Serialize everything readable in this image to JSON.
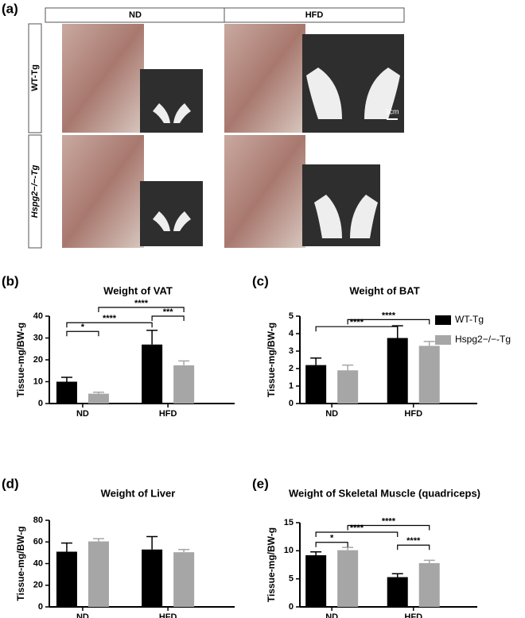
{
  "panel_a": {
    "label": "(a)",
    "columns": [
      "ND",
      "HFD"
    ],
    "rows": [
      "WT-Tg",
      "Hspg2−/−-Tg"
    ],
    "scale": "1cm"
  },
  "chart_data": [
    {
      "type": "bar",
      "panel": "(b)",
      "title": "Weight of VAT",
      "ylabel": "Tissue-mg/BW-g",
      "categories": [
        "ND",
        "HFD"
      ],
      "ylim": [
        0,
        40
      ],
      "yticks": [
        0,
        10,
        20,
        30,
        40
      ],
      "series": [
        {
          "name": "WT-Tg",
          "color": "#000000",
          "values": [
            10,
            27
          ],
          "errors": [
            2,
            6.5
          ]
        },
        {
          "name": "Hspg2−/−-Tg",
          "color": "#a6a6a6",
          "values": [
            4.5,
            17.5
          ],
          "errors": [
            0.7,
            2
          ]
        }
      ],
      "annotations": [
        {
          "text": "*",
          "pair": [
            [
              0,
              0
            ],
            [
              0,
              1
            ]
          ],
          "y": 33
        },
        {
          "text": "****",
          "pair": [
            [
              0,
              0
            ],
            [
              1,
              0
            ]
          ],
          "y": 37
        },
        {
          "text": "***",
          "pair": [
            [
              1,
              0
            ],
            [
              1,
              1
            ]
          ],
          "y": 40
        },
        {
          "text": "****",
          "pair": [
            [
              0,
              1
            ],
            [
              1,
              1
            ]
          ],
          "y": 44
        }
      ]
    },
    {
      "type": "bar",
      "panel": "(c)",
      "title": "Weight of BAT",
      "ylabel": "Tissue-mg/BW-g",
      "categories": [
        "ND",
        "HFD"
      ],
      "ylim": [
        0,
        5
      ],
      "yticks": [
        0,
        1,
        2,
        3,
        4,
        5
      ],
      "legend": "right",
      "series": [
        {
          "name": "WT-Tg",
          "color": "#000000",
          "values": [
            2.2,
            3.75
          ],
          "errors": [
            0.4,
            0.7
          ]
        },
        {
          "name": "Hspg2−/−-Tg",
          "color": "#a6a6a6",
          "values": [
            1.9,
            3.3
          ],
          "errors": [
            0.3,
            0.25
          ]
        }
      ],
      "annotations": [
        {
          "text": "****",
          "pair": [
            [
              0,
              0
            ],
            [
              1,
              0
            ]
          ],
          "y": 4.4
        },
        {
          "text": "****",
          "pair": [
            [
              0,
              1
            ],
            [
              1,
              1
            ]
          ],
          "y": 4.8
        }
      ]
    },
    {
      "type": "bar",
      "panel": "(d)",
      "title": "Weight of Liver",
      "ylabel": "Tissue-mg/BW-g",
      "categories": [
        "ND",
        "HFD"
      ],
      "ylim": [
        0,
        80
      ],
      "yticks": [
        0,
        20,
        40,
        60,
        80
      ],
      "series": [
        {
          "name": "WT-Tg",
          "color": "#000000",
          "values": [
            51,
            53
          ],
          "errors": [
            8,
            12
          ]
        },
        {
          "name": "Hspg2−/−-Tg",
          "color": "#a6a6a6",
          "values": [
            60.5,
            50.5
          ],
          "errors": [
            2.5,
            2.5
          ]
        }
      ]
    },
    {
      "type": "bar",
      "panel": "(e)",
      "title": "Weight of Skeletal Muscle (quadriceps)",
      "ylabel": "Tissue-mg/BW-g",
      "categories": [
        "ND",
        "HFD"
      ],
      "ylim": [
        0,
        15
      ],
      "yticks": [
        0,
        5,
        10,
        15
      ],
      "series": [
        {
          "name": "WT-Tg",
          "color": "#000000",
          "values": [
            9.2,
            5.3
          ],
          "errors": [
            0.6,
            0.6
          ]
        },
        {
          "name": "Hspg2−/−-Tg",
          "color": "#a6a6a6",
          "values": [
            10.1,
            7.8
          ],
          "errors": [
            0.5,
            0.5
          ]
        }
      ],
      "annotations": [
        {
          "text": "*",
          "pair": [
            [
              0,
              0
            ],
            [
              0,
              1
            ]
          ],
          "y": 11.5
        },
        {
          "text": "****",
          "pair": [
            [
              0,
              0
            ],
            [
              1,
              0
            ]
          ],
          "y": 13.3
        },
        {
          "text": "****",
          "pair": [
            [
              0,
              1
            ],
            [
              1,
              1
            ]
          ],
          "y": 14.5
        },
        {
          "text": "****",
          "pair": [
            [
              1,
              0
            ],
            [
              1,
              1
            ]
          ],
          "y": 11
        }
      ]
    }
  ]
}
